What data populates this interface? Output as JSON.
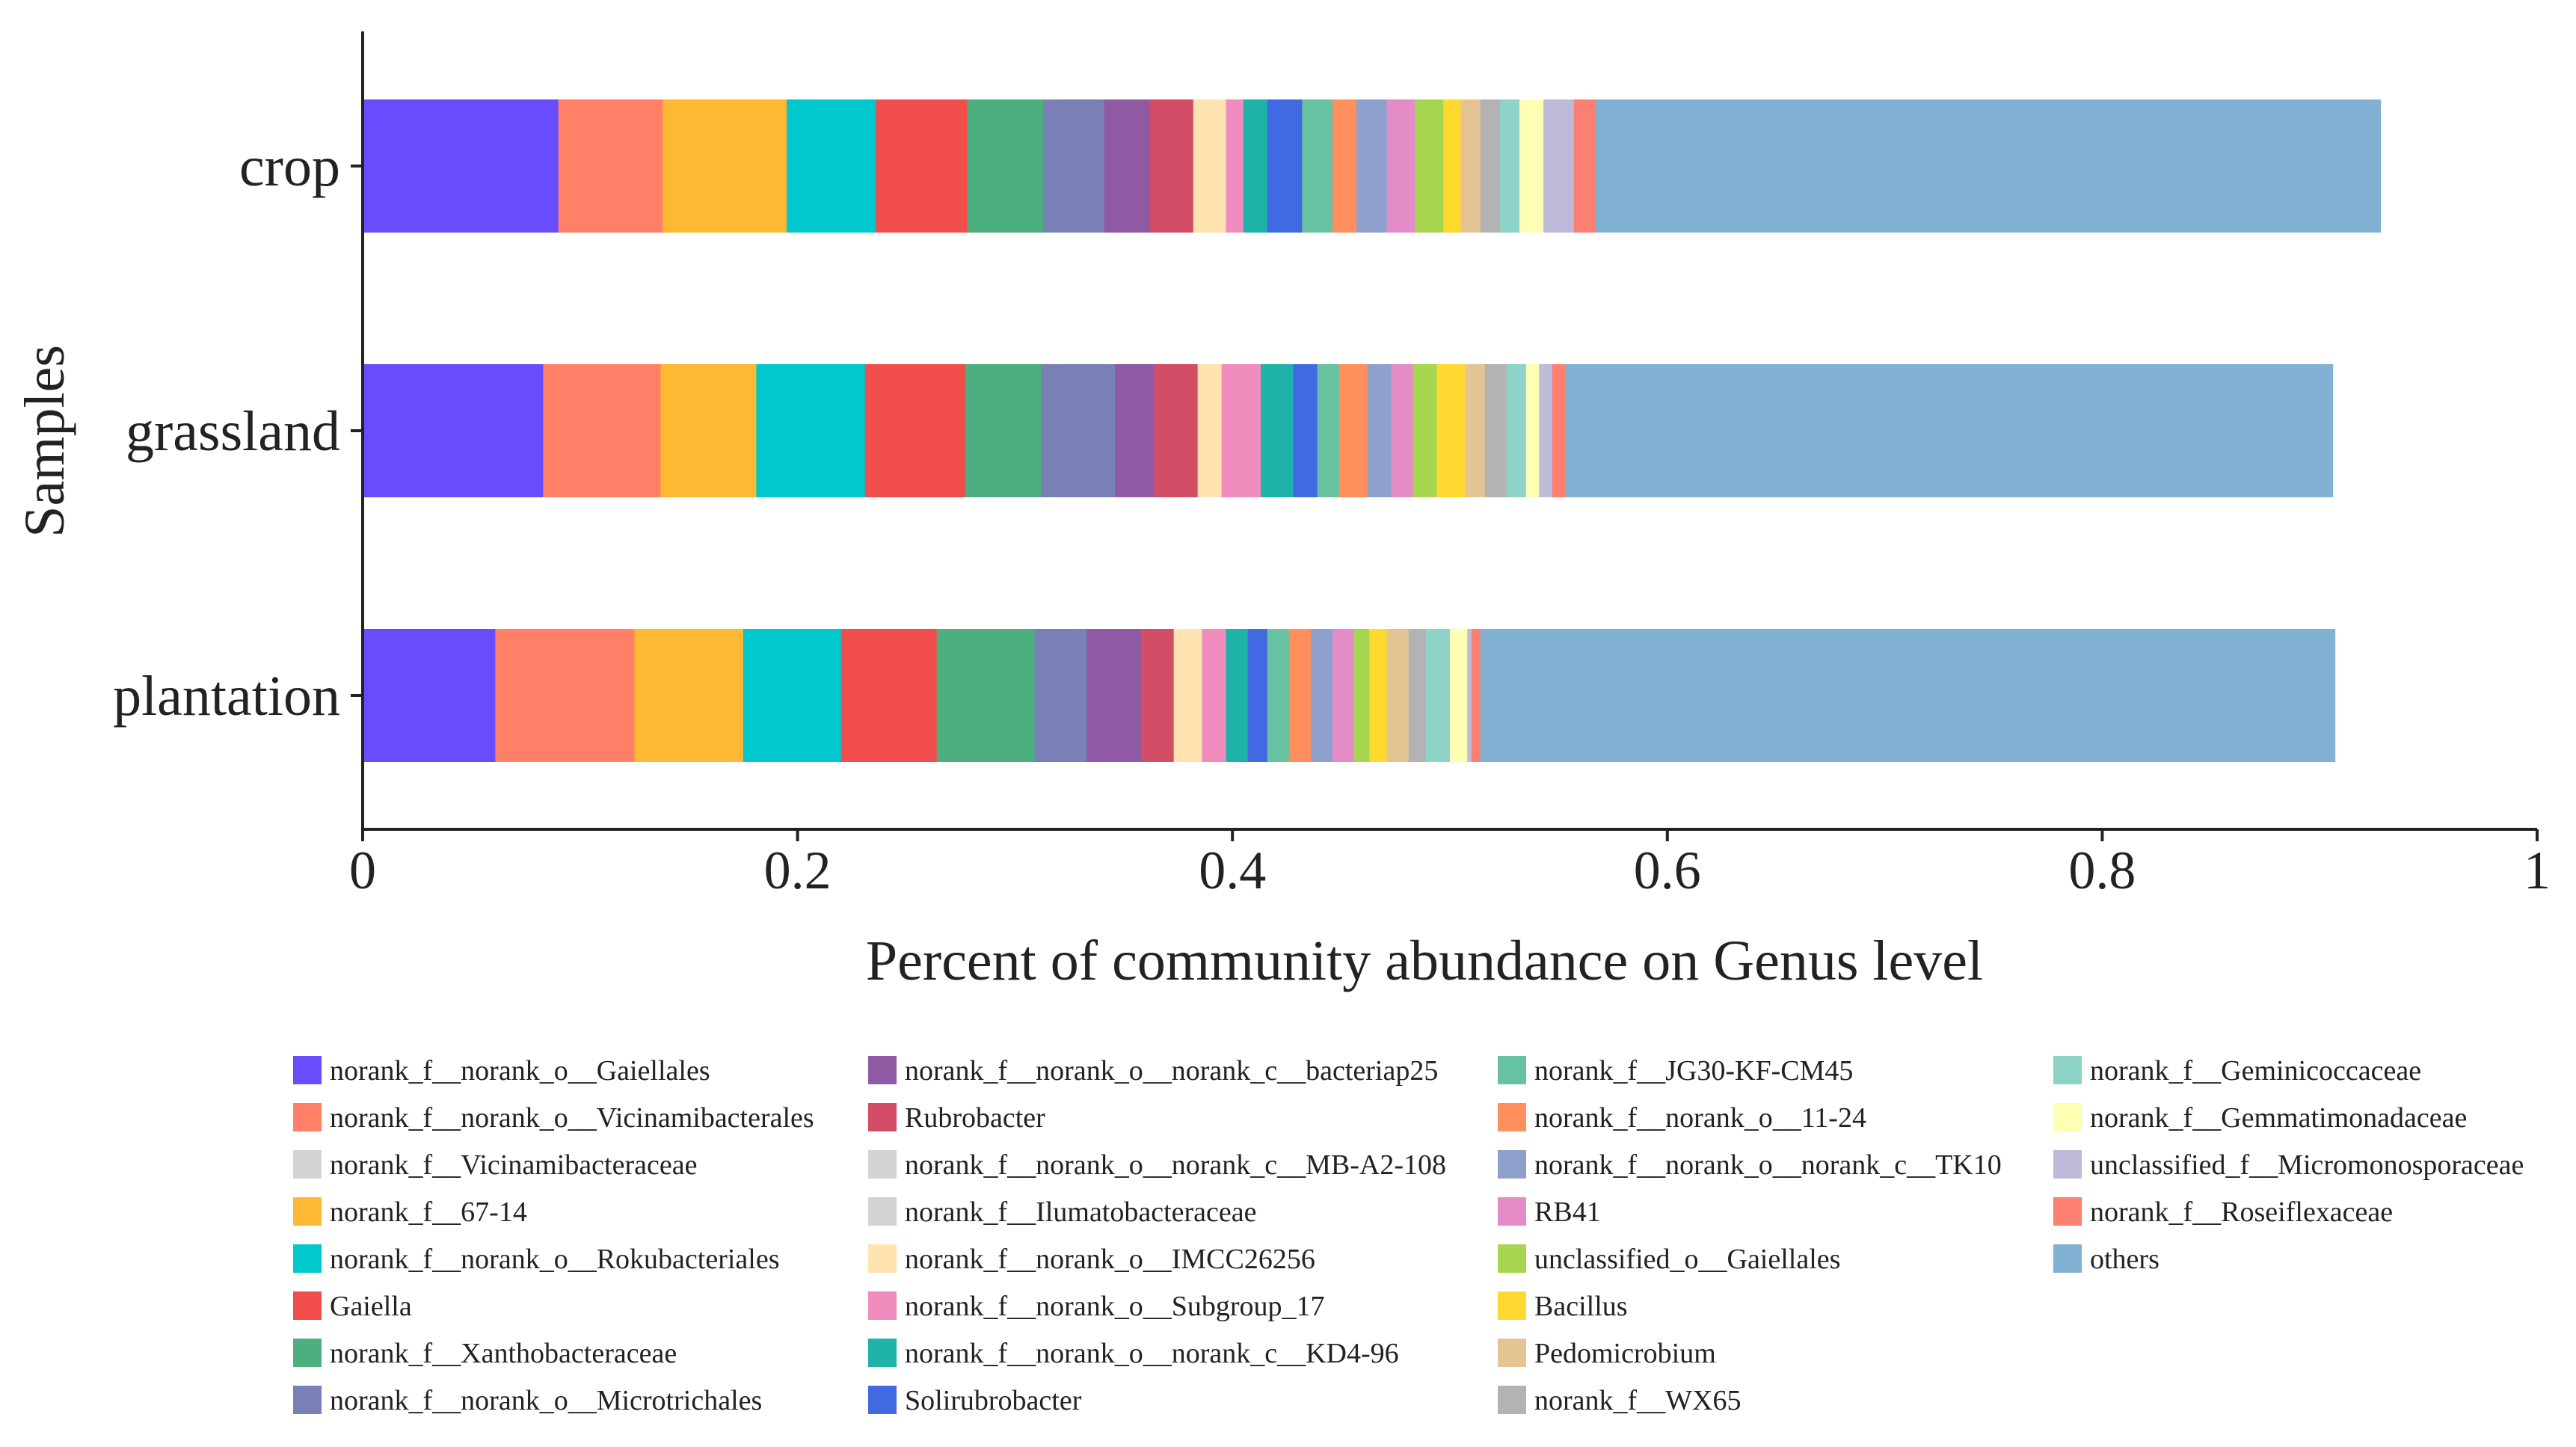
{
  "chart_data": {
    "type": "bar",
    "orientation": "horizontal",
    "stacked": true,
    "title": "",
    "xlabel": "Percent of community abundance on Genus level",
    "ylabel": "Samples",
    "xlim": [
      0,
      1
    ],
    "xticks": [
      0,
      0.2,
      0.4,
      0.6,
      0.8,
      1
    ],
    "xtick_labels": [
      "0",
      "0.2",
      "0.4",
      "0.6",
      "0.8",
      "1"
    ],
    "categories": [
      "crop",
      "grassland",
      "plantation"
    ],
    "legend_position": "bottom",
    "grid": false,
    "series": [
      {
        "name": "norank_f__norank_o__Gaiellales",
        "color": "#6A4CFF",
        "values": [
          0.09,
          0.083,
          0.061
        ]
      },
      {
        "name": "norank_f__norank_o__Vicinamibacterales",
        "color": "#FF8066",
        "values": [
          0.048,
          0.054,
          0.064
        ]
      },
      {
        "name": "norank_f__Vicinamibacteraceae",
        "color": "#D3D3D3",
        "values": [
          0.0,
          0.0,
          0.0
        ]
      },
      {
        "name": "norank_f__67-14",
        "color": "#FFB833",
        "values": [
          0.057,
          0.044,
          0.05
        ]
      },
      {
        "name": "norank_f__norank_o__Rokubacteriales",
        "color": "#00C8CC",
        "values": [
          0.041,
          0.05,
          0.045
        ]
      },
      {
        "name": "Gaiella",
        "color": "#F24D4D",
        "values": [
          0.042,
          0.046,
          0.044
        ]
      },
      {
        "name": "norank_f__Xanthobacteraceae",
        "color": "#4CAF7D",
        "values": [
          0.035,
          0.035,
          0.045
        ]
      },
      {
        "name": "norank_f__norank_o__Microtrichales",
        "color": "#7880B5",
        "values": [
          0.028,
          0.034,
          0.024
        ]
      },
      {
        "name": "norank_f__norank_o__norank_c__bacteriap25",
        "color": "#8F5AA3",
        "values": [
          0.021,
          0.018,
          0.025
        ]
      },
      {
        "name": "Rubrobacter",
        "color": "#D44D66",
        "values": [
          0.02,
          0.02,
          0.015
        ]
      },
      {
        "name": "norank_f__norank_o__norank_c__MB-A2-108",
        "color": "#D3D3D3",
        "values": [
          0.0,
          0.0,
          0.0
        ]
      },
      {
        "name": "norank_f__Ilumatobacteraceae",
        "color": "#D3D3D3",
        "values": [
          0.0,
          0.0,
          0.0
        ]
      },
      {
        "name": "norank_f__norank_o__IMCC26256",
        "color": "#FFE3B0",
        "values": [
          0.015,
          0.011,
          0.013
        ]
      },
      {
        "name": "norank_f__norank_o__Subgroup_17",
        "color": "#F08CBE",
        "values": [
          0.008,
          0.018,
          0.011
        ]
      },
      {
        "name": "norank_f__norank_o__norank_c__KD4-96",
        "color": "#1FB2A8",
        "values": [
          0.011,
          0.015,
          0.01
        ]
      },
      {
        "name": "Solirubrobacter",
        "color": "#4169E1",
        "values": [
          0.016,
          0.011,
          0.009
        ]
      },
      {
        "name": "norank_f__JG30-KF-CM45",
        "color": "#66C2A0",
        "values": [
          0.014,
          0.01,
          0.01
        ]
      },
      {
        "name": "norank_f__norank_o__11-24",
        "color": "#FF8F5C",
        "values": [
          0.011,
          0.013,
          0.01
        ]
      },
      {
        "name": "norank_f__norank_o__norank_c__TK10",
        "color": "#8FA0CC",
        "values": [
          0.014,
          0.011,
          0.01
        ]
      },
      {
        "name": "RB41",
        "color": "#E38CC7",
        "values": [
          0.013,
          0.01,
          0.01
        ]
      },
      {
        "name": "unclassified_o__Gaiellales",
        "color": "#A6D64F",
        "values": [
          0.013,
          0.011,
          0.007
        ]
      },
      {
        "name": "Bacillus",
        "color": "#FFD92F",
        "values": [
          0.008,
          0.013,
          0.008
        ]
      },
      {
        "name": "Pedomicrobium",
        "color": "#E5C494",
        "values": [
          0.009,
          0.009,
          0.01
        ]
      },
      {
        "name": "norank_f__WX65",
        "color": "#B3B3B3",
        "values": [
          0.009,
          0.01,
          0.008
        ]
      },
      {
        "name": "norank_f__Geminicoccaceae",
        "color": "#8DD3C7",
        "values": [
          0.009,
          0.009,
          0.011
        ]
      },
      {
        "name": "norank_f__Gemmatimonadaceae",
        "color": "#FFFFB3",
        "values": [
          0.011,
          0.006,
          0.008
        ]
      },
      {
        "name": "unclassified_f__Micromonosporaceae",
        "color": "#BEBADA",
        "values": [
          0.014,
          0.006,
          0.002
        ]
      },
      {
        "name": "norank_f__Roseiflexaceae",
        "color": "#FB8072",
        "values": [
          0.01,
          0.006,
          0.004
        ]
      },
      {
        "name": "others",
        "color": "#80B1D3",
        "values": [
          0.361,
          0.353,
          0.393
        ]
      }
    ]
  }
}
